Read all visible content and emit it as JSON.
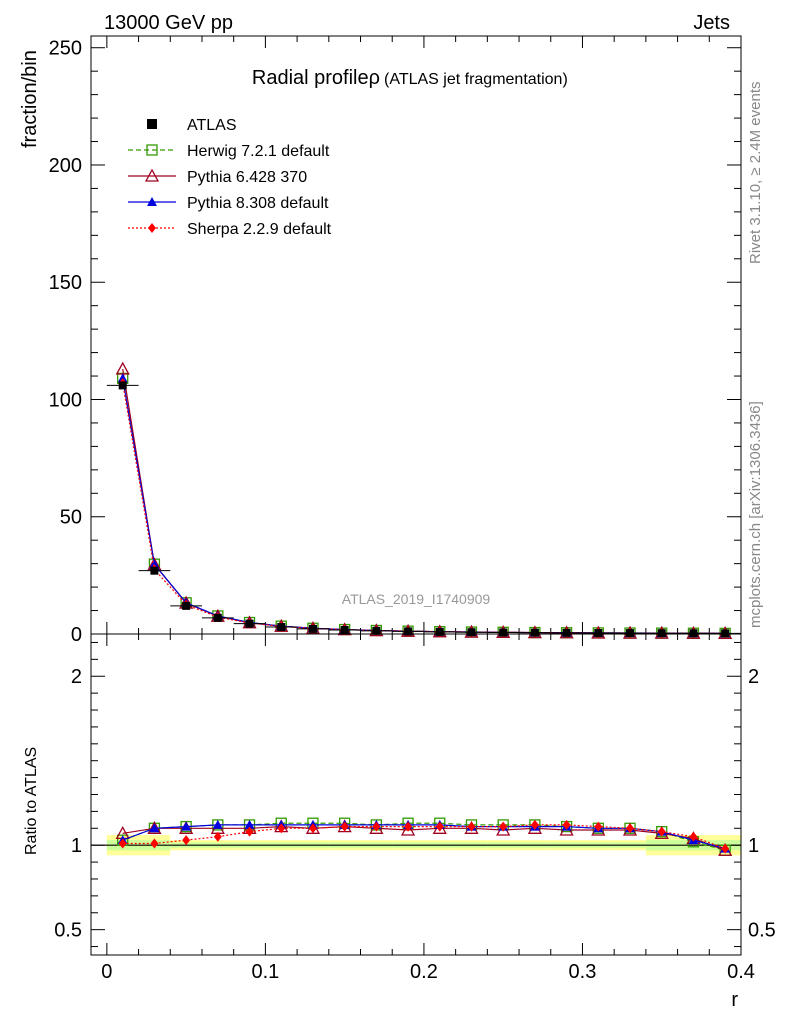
{
  "header": {
    "left": "13000 GeV pp",
    "right": "Jets"
  },
  "side_labels": {
    "rivet": "Rivet 3.1.10, ≥ 2.4M events",
    "mcplots": "mcplots.cern.ch [arXiv:1306.3436]"
  },
  "chart_data": {
    "type": "line",
    "title": "Radial profileρ",
    "subtitle": "(ATLAS jet fragmentation)",
    "watermark": "ATLAS_2019_I1740909",
    "xlabel": "r",
    "ylabel": "fraction/bin",
    "ratio_ylabel": "Ratio to ATLAS",
    "xlim": [
      -0.01,
      0.4
    ],
    "ylim": [
      0,
      255
    ],
    "ratio_ylim": [
      0.35,
      2.25
    ],
    "x_ticks": [
      0,
      0.1,
      0.2,
      0.3,
      0.4
    ],
    "x_tick_labels": [
      "0",
      "0.1",
      "0.2",
      "0.3",
      "0.4"
    ],
    "y_ticks": [
      0,
      50,
      100,
      150,
      200,
      250
    ],
    "y_tick_labels": [
      "0",
      "50",
      "100",
      "150",
      "200",
      "250"
    ],
    "ratio_ticks": [
      0.5,
      1,
      2
    ],
    "ratio_tick_labels": [
      "0.5",
      "1",
      "2"
    ],
    "x": [
      0.01,
      0.03,
      0.05,
      0.07,
      0.09,
      0.11,
      0.13,
      0.15,
      0.17,
      0.19,
      0.21,
      0.23,
      0.25,
      0.27,
      0.29,
      0.31,
      0.33,
      0.35,
      0.37,
      0.39
    ],
    "data": {
      "name": "ATLAS",
      "color": "#000000",
      "values": [
        106,
        27,
        12,
        6.9,
        4.4,
        3.0,
        2.2,
        1.7,
        1.35,
        1.1,
        0.9,
        0.76,
        0.65,
        0.56,
        0.49,
        0.43,
        0.38,
        0.34,
        0.31,
        0.28
      ]
    },
    "series": [
      {
        "name": "Herwig 7.2.1 default",
        "color": "#339900",
        "marker": "open-square",
        "dash": "5,3",
        "values": [
          109,
          29.8,
          13.3,
          7.7,
          4.9,
          3.35,
          2.45,
          1.9,
          1.5,
          1.22,
          1.0,
          0.84,
          0.72,
          0.62,
          0.54,
          0.47,
          0.41,
          0.36,
          0.32,
          0.27
        ],
        "ratio": [
          1.03,
          1.1,
          1.11,
          1.12,
          1.12,
          1.13,
          1.13,
          1.13,
          1.12,
          1.13,
          1.13,
          1.12,
          1.12,
          1.12,
          1.11,
          1.1,
          1.1,
          1.08,
          1.02,
          0.97
        ]
      },
      {
        "name": "Pythia 6.428 370",
        "color": "#a00020",
        "marker": "open-triangle",
        "dash": "",
        "values": [
          113,
          29.6,
          13.2,
          7.6,
          4.8,
          3.3,
          2.4,
          1.86,
          1.47,
          1.2,
          0.98,
          0.83,
          0.71,
          0.61,
          0.53,
          0.46,
          0.41,
          0.36,
          0.32,
          0.27
        ],
        "ratio": [
          1.07,
          1.1,
          1.1,
          1.1,
          1.1,
          1.11,
          1.1,
          1.11,
          1.1,
          1.09,
          1.1,
          1.1,
          1.09,
          1.1,
          1.09,
          1.09,
          1.09,
          1.07,
          1.04,
          0.97
        ]
      },
      {
        "name": "Pythia 8.308 default",
        "color": "#0000dd",
        "marker": "triangle",
        "dash": "",
        "values": [
          109,
          29.7,
          13.3,
          7.7,
          4.9,
          3.35,
          2.45,
          1.89,
          1.49,
          1.21,
          0.99,
          0.84,
          0.72,
          0.62,
          0.54,
          0.47,
          0.42,
          0.37,
          0.32,
          0.27
        ],
        "ratio": [
          1.03,
          1.1,
          1.11,
          1.12,
          1.12,
          1.12,
          1.12,
          1.12,
          1.12,
          1.12,
          1.12,
          1.11,
          1.11,
          1.11,
          1.11,
          1.1,
          1.1,
          1.08,
          1.03,
          0.98
        ]
      },
      {
        "name": "Sherpa 2.2.9 default",
        "color": "#ff0000",
        "marker": "diamond",
        "dash": "2,2",
        "values": [
          107,
          27.5,
          12.5,
          7.2,
          4.7,
          3.25,
          2.4,
          1.86,
          1.48,
          1.21,
          0.99,
          0.84,
          0.72,
          0.62,
          0.54,
          0.47,
          0.41,
          0.36,
          0.32,
          0.27
        ],
        "ratio": [
          1.01,
          1.01,
          1.03,
          1.05,
          1.08,
          1.1,
          1.1,
          1.11,
          1.11,
          1.11,
          1.11,
          1.11,
          1.11,
          1.12,
          1.12,
          1.11,
          1.1,
          1.08,
          1.05,
          0.98
        ]
      }
    ]
  }
}
